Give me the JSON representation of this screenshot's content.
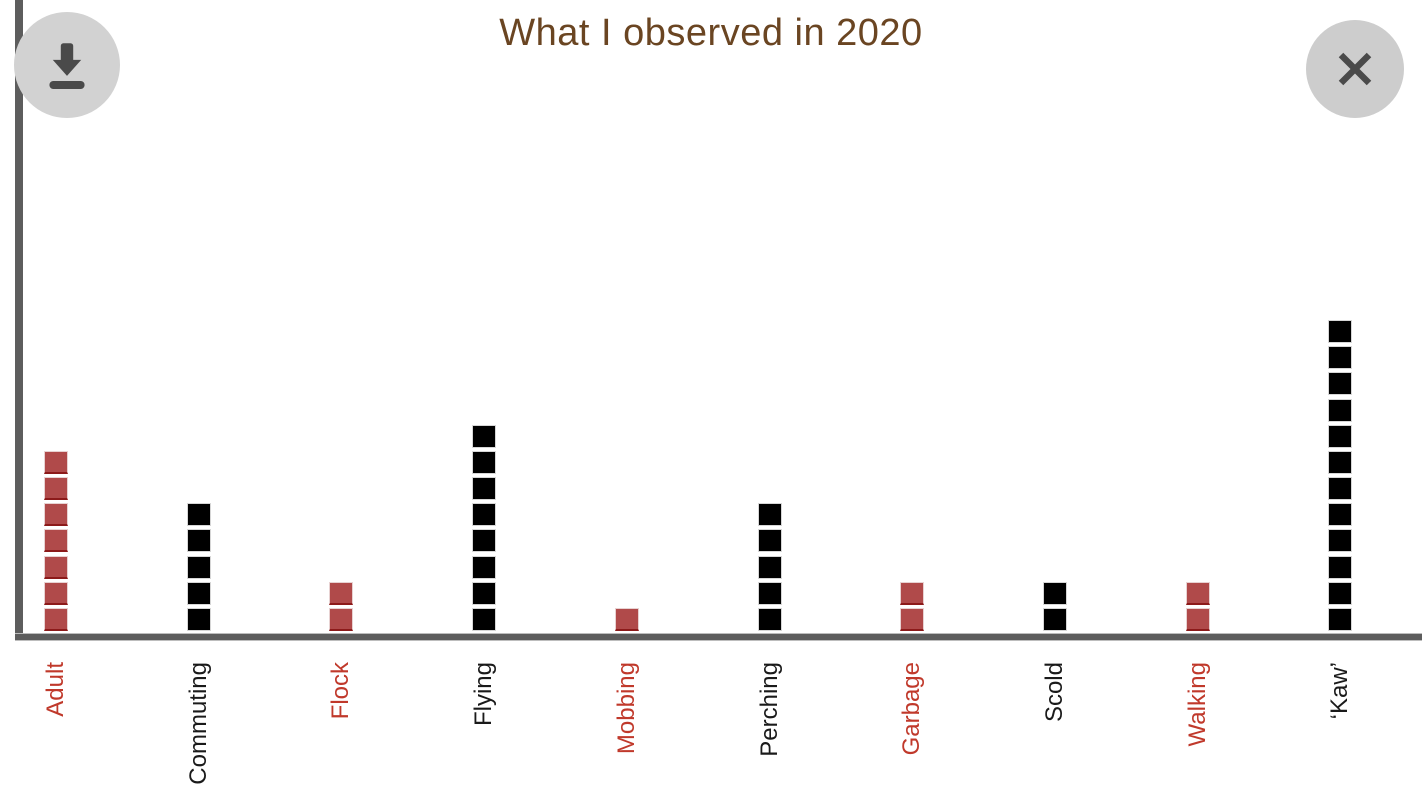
{
  "title": "What I observed in 2020",
  "toolbar": {
    "download_label": "Download chart",
    "close_label": "Close"
  },
  "chart_data": {
    "type": "bar",
    "subtype": "pictogram-stacked-squares",
    "title": "What I observed in 2020",
    "unit_value": 1,
    "categories": [
      "Adult",
      "Commuting",
      "Flock",
      "Flying",
      "Mobbing",
      "Perching",
      "Garbage",
      "Scold",
      "Walking",
      "‘Kaw’"
    ],
    "values": [
      7,
      5,
      2,
      8,
      1,
      5,
      2,
      2,
      2,
      12
    ],
    "series_colors": [
      "red",
      "black",
      "red",
      "black",
      "red",
      "black",
      "red",
      "black",
      "red",
      "black"
    ],
    "xlabel": "",
    "ylabel": "",
    "ylim": [
      0,
      12
    ],
    "grid": false,
    "legend": "none"
  },
  "colors": {
    "title": "#6a4522",
    "axis": "#5d5d5d",
    "square_red": "#b04a4a",
    "square_red_edge": "#8c1a1a",
    "square_black": "#000000",
    "label_red": "#c0392b",
    "label_black": "#1a1a1a",
    "button_bg": "#d2d2d2",
    "button_icon": "#4a4a4a"
  }
}
